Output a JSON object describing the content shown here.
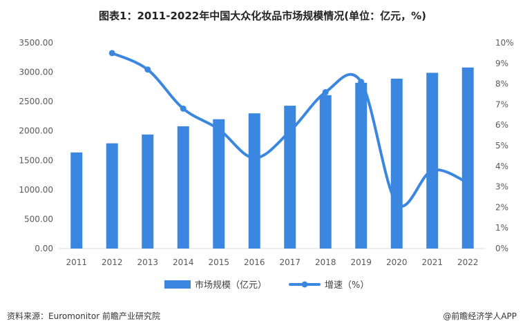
{
  "title": "图表1：2011-2022年中国大众化妆品市场规模情况(单位：亿元，%)",
  "source": "资料来源：Euromonitor 前瞻产业研究院",
  "brand": "@前瞻经济学人APP",
  "colors": {
    "bar": "#3b87e0",
    "line": "#3b87e0"
  },
  "chart_data": {
    "type": "bar",
    "categories": [
      "2011",
      "2012",
      "2013",
      "2014",
      "2015",
      "2016",
      "2017",
      "2018",
      "2019",
      "2020",
      "2021",
      "2022"
    ],
    "y_left": {
      "ylim": [
        0,
        3500
      ],
      "ticks": [
        "0.00",
        "500.00",
        "1000.00",
        "1500.00",
        "2000.00",
        "2500.00",
        "3000.00",
        "3500.00"
      ]
    },
    "y_right": {
      "ylim": [
        0,
        10
      ],
      "ticks": [
        "0%",
        "1%",
        "2%",
        "3%",
        "4%",
        "5%",
        "6%",
        "7%",
        "8%",
        "9%",
        "10%"
      ]
    },
    "series": [
      {
        "name": "市场规模（亿元）",
        "type": "bar",
        "axis": "left",
        "values": [
          1635,
          1790,
          1940,
          2080,
          2200,
          2300,
          2430,
          2610,
          2820,
          2890,
          2990,
          3080
        ]
      },
      {
        "name": "增速（%）",
        "type": "line",
        "axis": "right",
        "smooth": true,
        "values": [
          null,
          9.5,
          8.7,
          6.8,
          5.8,
          4.4,
          5.7,
          7.6,
          8.1,
          2.2,
          3.8,
          3.2
        ]
      }
    ],
    "legend": "bottom"
  }
}
